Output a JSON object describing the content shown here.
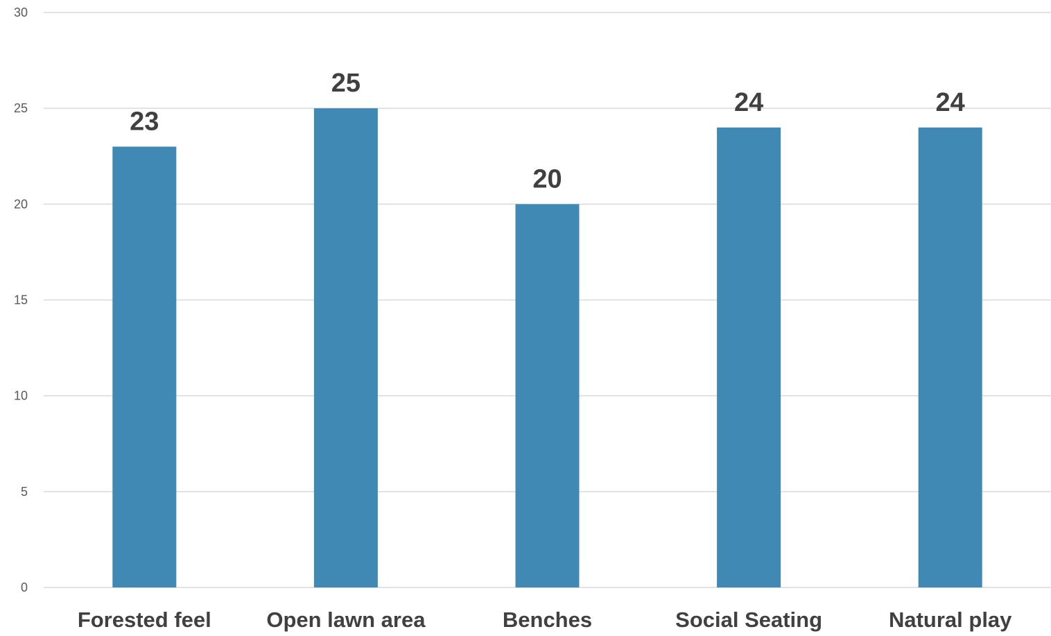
{
  "chart_data": {
    "type": "bar",
    "title": "",
    "xlabel": "",
    "ylabel": "",
    "categories": [
      "Forested feel",
      "Open lawn area",
      "Benches",
      "Social Seating",
      "Natural play"
    ],
    "values": [
      23,
      25,
      20,
      24,
      24
    ],
    "ylim": [
      0,
      30
    ],
    "yticks": [
      0,
      5,
      10,
      15,
      20,
      25,
      30
    ],
    "grid": true,
    "legend": "none",
    "show_data_labels": true,
    "colors": {
      "bar": "#4189b5",
      "grid": "#d9d9d9",
      "tick_text": "#595959",
      "label_text": "#404040"
    }
  }
}
